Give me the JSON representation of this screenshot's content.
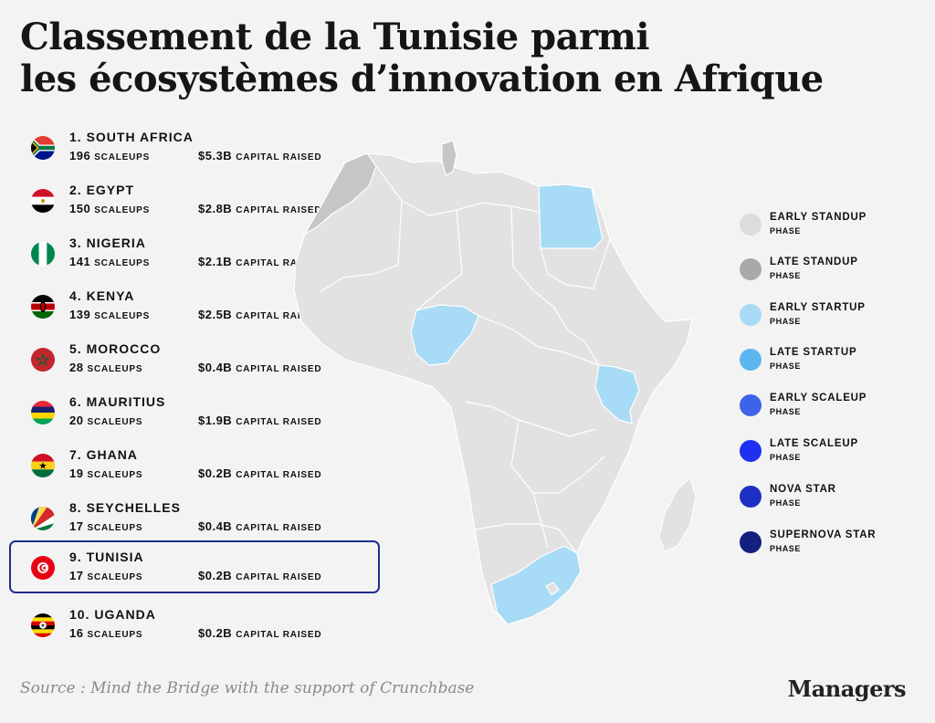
{
  "title": {
    "line1": "Classement de la Tunisie parmi",
    "line2": "les écosystèmes d’innovation en Afrique"
  },
  "units": {
    "scaleups": "SCALEUPS",
    "capital": "CAPITAL RAISED"
  },
  "ranking": [
    {
      "rank": "1.",
      "name": "SOUTH AFRICA",
      "scaleups": "196",
      "capital": "$5.3B",
      "flag": "south-africa-flag"
    },
    {
      "rank": "2.",
      "name": "EGYPT",
      "scaleups": "150",
      "capital": "$2.8B",
      "flag": "egypt-flag"
    },
    {
      "rank": "3.",
      "name": "NIGERIA",
      "scaleups": "141",
      "capital": "$2.1B",
      "flag": "nigeria-flag"
    },
    {
      "rank": "4.",
      "name": "KENYA",
      "scaleups": "139",
      "capital": "$2.5B",
      "flag": "kenya-flag"
    },
    {
      "rank": "5.",
      "name": "MOROCCO",
      "scaleups": "28",
      "capital": "$0.4B",
      "flag": "morocco-flag"
    },
    {
      "rank": "6.",
      "name": "MAURITIUS",
      "scaleups": "20",
      "capital": "$1.9B",
      "flag": "mauritius-flag"
    },
    {
      "rank": "7.",
      "name": "GHANA",
      "scaleups": "19",
      "capital": "$0.2B",
      "flag": "ghana-flag"
    },
    {
      "rank": "8.",
      "name": "SEYCHELLES",
      "scaleups": "17",
      "capital": "$0.4B",
      "flag": "seychelles-flag"
    },
    {
      "rank": "9.",
      "name": "TUNISIA",
      "scaleups": "17",
      "capital": "$0.2B",
      "flag": "tunisia-flag",
      "highlighted": true
    },
    {
      "rank": "10.",
      "name": "UGANDA",
      "scaleups": "16",
      "capital": "$0.2B",
      "flag": "uganda-flag"
    }
  ],
  "legend": {
    "sub_label": "PHASE",
    "items": [
      {
        "label": "EARLY STANDUP",
        "color": "#dcdcdc"
      },
      {
        "label": "LATE STANDUP",
        "color": "#a9a9a9"
      },
      {
        "label": "EARLY STARTUP",
        "color": "#a8dbf6"
      },
      {
        "label": "LATE STARTUP",
        "color": "#5bb6ef"
      },
      {
        "label": "EARLY SCALEUP",
        "color": "#3d63e8"
      },
      {
        "label": "LATE SCALEUP",
        "color": "#1f30f0"
      },
      {
        "label": "NOVA STAR",
        "color": "#1d2fc4"
      },
      {
        "label": "SUPERNOVA STAR",
        "color": "#14207f"
      }
    ]
  },
  "map": {
    "base_color": "#e2e2e2",
    "border_color": "#ffffff",
    "highlight_color": "#a8dbf6",
    "late_standup_color": "#c6c6c6",
    "highlighted_countries": [
      "egypt",
      "nigeria",
      "kenya",
      "south-africa"
    ],
    "late_standup_countries": [
      "morocco",
      "tunisia"
    ]
  },
  "source": "Source : Mind the Bridge with the support of Crunchbase",
  "brand": "Managers"
}
